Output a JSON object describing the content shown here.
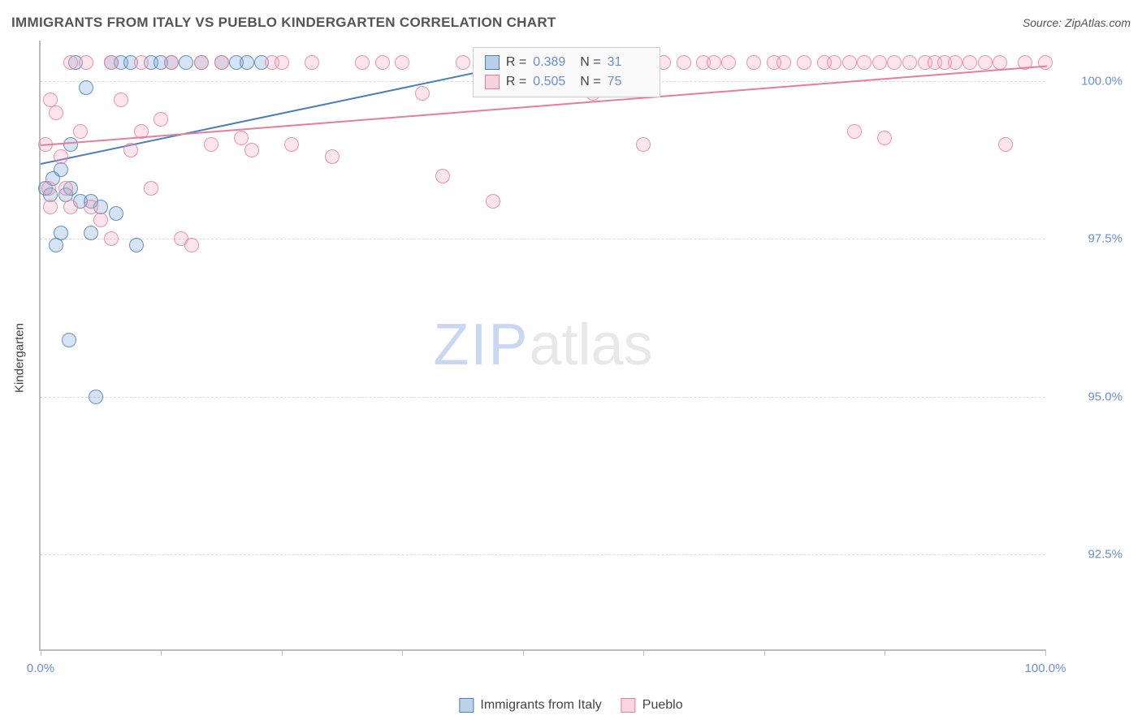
{
  "title": "IMMIGRANTS FROM ITALY VS PUEBLO KINDERGARTEN CORRELATION CHART",
  "source": "Source: ZipAtlas.com",
  "ylabel": "Kindergarten",
  "watermark": {
    "zip": "ZIP",
    "atlas": "atlas"
  },
  "chart": {
    "type": "scatter",
    "xlim": [
      0,
      100
    ],
    "ylim": [
      91.0,
      100.4
    ],
    "xticks": [
      0,
      12,
      24,
      36,
      48,
      60,
      72,
      84,
      100
    ],
    "xtick_labels": {
      "0": "0.0%",
      "100": "100.0%"
    },
    "yticks": [
      92.5,
      95.0,
      97.5,
      100.0
    ],
    "ytick_labels": [
      "92.5%",
      "95.0%",
      "97.5%",
      "100.0%"
    ],
    "background_color": "#ffffff",
    "grid_color": "#dddddd",
    "axis_color": "#bbbbbb",
    "tick_label_color": "#6a8fd8",
    "marker_radius": 9,
    "marker_fill_opacity": 0.28,
    "marker_stroke_opacity": 0.8,
    "marker_stroke_width": 1.3,
    "line_width": 2
  },
  "series": [
    {
      "name": "Immigrants from Italy",
      "color": "#6b9bd1",
      "stroke": "#4a7fb8",
      "R": "0.389",
      "N": "31",
      "trend": {
        "x1": 0,
        "y1": 98.7,
        "x2": 48,
        "y2": 100.3
      },
      "points": [
        [
          0.5,
          98.3
        ],
        [
          1.0,
          98.2
        ],
        [
          1.2,
          98.45
        ],
        [
          1.5,
          97.4
        ],
        [
          2.0,
          98.6
        ],
        [
          2.0,
          97.6
        ],
        [
          2.5,
          98.2
        ],
        [
          2.8,
          95.9
        ],
        [
          3.0,
          99.0
        ],
        [
          3.0,
          98.3
        ],
        [
          3.5,
          100.3
        ],
        [
          4.0,
          98.1
        ],
        [
          4.5,
          99.9
        ],
        [
          5.0,
          98.1
        ],
        [
          5.0,
          97.6
        ],
        [
          5.5,
          95.0
        ],
        [
          6.0,
          98.0
        ],
        [
          7.0,
          100.3
        ],
        [
          7.5,
          97.9
        ],
        [
          8.0,
          100.3
        ],
        [
          9.0,
          100.3
        ],
        [
          9.5,
          97.4
        ],
        [
          11.0,
          100.3
        ],
        [
          12.0,
          100.3
        ],
        [
          13.0,
          100.3
        ],
        [
          14.5,
          100.3
        ],
        [
          16.0,
          100.3
        ],
        [
          18.0,
          100.3
        ],
        [
          19.5,
          100.3
        ],
        [
          20.5,
          100.3
        ],
        [
          22.0,
          100.3
        ]
      ]
    },
    {
      "name": "Pueblo",
      "color": "#f4a6bb",
      "stroke": "#e87d9a",
      "R": "0.505",
      "N": "75",
      "trend": {
        "x1": 0,
        "y1": 99.0,
        "x2": 100,
        "y2": 100.25
      },
      "points": [
        [
          0.5,
          99.0
        ],
        [
          0.8,
          98.3
        ],
        [
          1.0,
          99.7
        ],
        [
          1.0,
          98.0
        ],
        [
          1.5,
          99.5
        ],
        [
          2.0,
          98.8
        ],
        [
          2.5,
          98.3
        ],
        [
          3.0,
          98.0
        ],
        [
          3.0,
          100.3
        ],
        [
          4.0,
          99.2
        ],
        [
          4.5,
          100.3
        ],
        [
          5.0,
          98.0
        ],
        [
          6.0,
          97.8
        ],
        [
          7.0,
          97.5
        ],
        [
          7.0,
          100.3
        ],
        [
          8.0,
          99.7
        ],
        [
          9.0,
          98.9
        ],
        [
          10.0,
          99.2
        ],
        [
          10.0,
          100.3
        ],
        [
          11.0,
          98.3
        ],
        [
          12.0,
          99.4
        ],
        [
          13.0,
          100.3
        ],
        [
          14.0,
          97.5
        ],
        [
          15.0,
          97.4
        ],
        [
          16.0,
          100.3
        ],
        [
          17.0,
          99.0
        ],
        [
          18.0,
          100.3
        ],
        [
          20.0,
          99.1
        ],
        [
          21.0,
          98.9
        ],
        [
          23.0,
          100.3
        ],
        [
          24.0,
          100.3
        ],
        [
          25.0,
          99.0
        ],
        [
          27.0,
          100.3
        ],
        [
          29.0,
          98.8
        ],
        [
          32.0,
          100.3
        ],
        [
          34.0,
          100.3
        ],
        [
          36.0,
          100.3
        ],
        [
          38.0,
          99.8
        ],
        [
          40.0,
          98.5
        ],
        [
          42.0,
          100.3
        ],
        [
          44.0,
          100.3
        ],
        [
          45.0,
          98.1
        ],
        [
          48.0,
          100.3
        ],
        [
          50.0,
          100.3
        ],
        [
          55.0,
          99.8
        ],
        [
          58.0,
          100.3
        ],
        [
          60.0,
          99.0
        ],
        [
          62.0,
          100.3
        ],
        [
          64.0,
          100.3
        ],
        [
          66.0,
          100.3
        ],
        [
          67.0,
          100.3
        ],
        [
          68.5,
          100.3
        ],
        [
          71.0,
          100.3
        ],
        [
          73.0,
          100.3
        ],
        [
          74.0,
          100.3
        ],
        [
          76.0,
          100.3
        ],
        [
          78.0,
          100.3
        ],
        [
          79.0,
          100.3
        ],
        [
          80.5,
          100.3
        ],
        [
          81.0,
          99.2
        ],
        [
          82.0,
          100.3
        ],
        [
          83.5,
          100.3
        ],
        [
          84.0,
          99.1
        ],
        [
          85.0,
          100.3
        ],
        [
          86.5,
          100.3
        ],
        [
          88.0,
          100.3
        ],
        [
          89.0,
          100.3
        ],
        [
          90.0,
          100.3
        ],
        [
          91.0,
          100.3
        ],
        [
          92.5,
          100.3
        ],
        [
          94.0,
          100.3
        ],
        [
          95.5,
          100.3
        ],
        [
          96.0,
          99.0
        ],
        [
          98.0,
          100.3
        ],
        [
          100.0,
          100.3
        ]
      ]
    }
  ],
  "legend_box_labels": {
    "R": "R =",
    "N": "N ="
  },
  "bottom_legend": [
    {
      "label": "Immigrants from Italy",
      "color": "#6b9bd1",
      "stroke": "#4a7fb8"
    },
    {
      "label": "Pueblo",
      "color": "#f4a6bb",
      "stroke": "#e87d9a"
    }
  ]
}
